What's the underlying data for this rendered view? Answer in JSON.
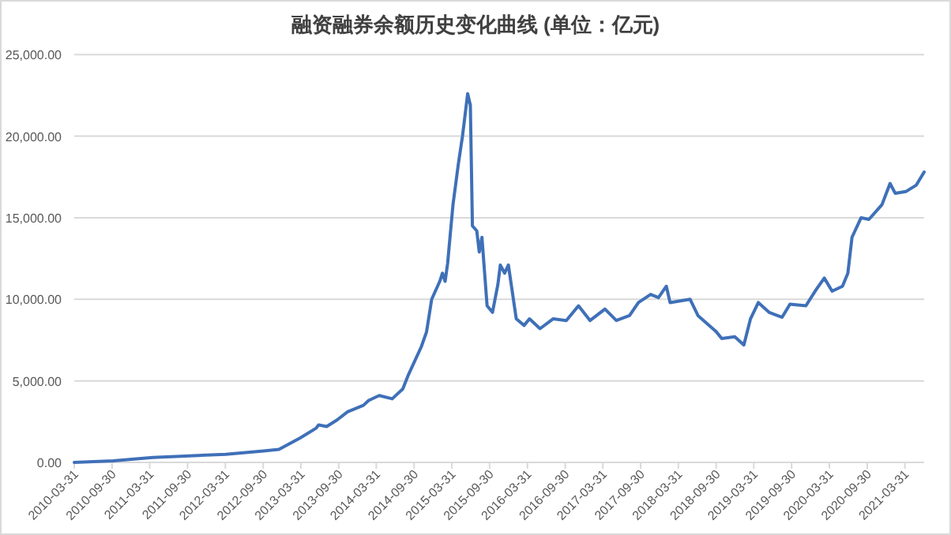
{
  "chart_data": {
    "type": "line",
    "title": "融资融券余额历史变化曲线 (单位：亿元)",
    "x": [
      "2010-03-31",
      "2010-10-06",
      "2011-04-15",
      "2011-10-09",
      "2012-04-02",
      "2012-10-02",
      "2012-12-15",
      "2013-03-28",
      "2013-06-13",
      "2013-06-25",
      "2013-08-03",
      "2013-09-22",
      "2013-11-12",
      "2014-01-28",
      "2014-02-22",
      "2014-04-14",
      "2014-06-16",
      "2014-08-06",
      "2014-08-31",
      "2014-11-04",
      "2014-11-29",
      "2014-12-24",
      "2015-02-01",
      "2015-02-14",
      "2015-02-27",
      "2015-03-11",
      "2015-04-06",
      "2015-05-02",
      "2015-05-22",
      "2015-06-16",
      "2015-06-29",
      "2015-07-09",
      "2015-07-30",
      "2015-08-11",
      "2015-08-24",
      "2015-09-18",
      "2015-10-14",
      "2015-11-09",
      "2015-11-21",
      "2015-12-12",
      "2015-12-30",
      "2016-02-06",
      "2016-03-15",
      "2016-04-10",
      "2016-05-31",
      "2016-08-02",
      "2016-10-05",
      "2016-12-03",
      "2017-01-28",
      "2017-04-10",
      "2017-06-04",
      "2017-08-07",
      "2017-09-19",
      "2017-11-17",
      "2017-12-25",
      "2018-02-01",
      "2018-02-19",
      "2018-05-27",
      "2018-07-04",
      "2018-10-01",
      "2018-10-27",
      "2018-12-29",
      "2019-02-11",
      "2019-03-15",
      "2019-04-22",
      "2019-06-13",
      "2019-08-15",
      "2019-09-22",
      "2019-12-08",
      "2020-01-27",
      "2020-03-06",
      "2020-04-13",
      "2020-06-02",
      "2020-06-28",
      "2020-07-18",
      "2020-08-31",
      "2020-10-08",
      "2020-12-10",
      "2021-01-18",
      "2021-02-12",
      "2021-04-04",
      "2021-05-25",
      "2021-07-02"
    ],
    "series": [
      {
        "color": "#3f70b8",
        "values": [
          0,
          100,
          300,
          400,
          500,
          700,
          800,
          1500,
          2100,
          2300,
          2200,
          2600,
          3100,
          3500,
          3800,
          4100,
          3900,
          4500,
          5300,
          7100,
          8000,
          10000,
          11100,
          11600,
          11100,
          12200,
          15800,
          18300,
          20000,
          22600,
          21900,
          14500,
          14200,
          12900,
          13800,
          9600,
          9200,
          10900,
          12100,
          11600,
          12100,
          8800,
          8400,
          8800,
          8200,
          8800,
          8700,
          9600,
          8700,
          9400,
          8700,
          9000,
          9800,
          10300,
          10100,
          10800,
          9800,
          10000,
          9000,
          8000,
          7600,
          7700,
          7200,
          8800,
          9800,
          9200,
          8900,
          9700,
          9600,
          10600,
          11300,
          10500,
          10800,
          11600,
          13800,
          15000,
          14900,
          15800,
          17100,
          16500,
          16600,
          17000,
          17800
        ]
      }
    ],
    "xlim": [
      "2010-03-31",
      "2021-07-02"
    ],
    "xticks": [
      "2010-03-31",
      "2010-09-30",
      "2011-03-31",
      "2011-09-30",
      "2012-03-31",
      "2012-09-30",
      "2013-03-31",
      "2013-09-30",
      "2014-03-31",
      "2014-09-30",
      "2015-03-31",
      "2015-09-30",
      "2016-03-31",
      "2016-09-30",
      "2017-03-31",
      "2017-09-30",
      "2018-03-31",
      "2018-09-30",
      "2019-03-31",
      "2019-09-30",
      "2020-03-31",
      "2020-09-30",
      "2021-03-31"
    ],
    "ylim": [
      0,
      25000
    ],
    "yticks": [
      {
        "value": 0,
        "label": "0.00"
      },
      {
        "value": 5000,
        "label": "5,000.00"
      },
      {
        "value": 10000,
        "label": "10,000.00"
      },
      {
        "value": 15000,
        "label": "15,000.00"
      },
      {
        "value": 20000,
        "label": "20,000.00"
      },
      {
        "value": 25000,
        "label": "25,000.00"
      }
    ],
    "grid": "y",
    "marker": "none",
    "line_style": "solid"
  }
}
